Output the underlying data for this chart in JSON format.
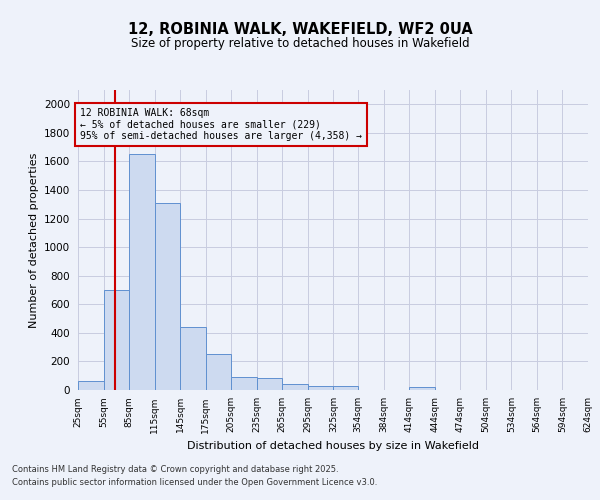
{
  "title": "12, ROBINIA WALK, WAKEFIELD, WF2 0UA",
  "subtitle": "Size of property relative to detached houses in Wakefield",
  "xlabel": "Distribution of detached houses by size in Wakefield",
  "ylabel": "Number of detached properties",
  "footnote1": "Contains HM Land Registry data © Crown copyright and database right 2025.",
  "footnote2": "Contains public sector information licensed under the Open Government Licence v3.0.",
  "bins": [
    25,
    55,
    85,
    115,
    145,
    175,
    205,
    235,
    265,
    295,
    325,
    354,
    384,
    414,
    444,
    474,
    504,
    534,
    564,
    594,
    624
  ],
  "bar_heights": [
    65,
    700,
    1650,
    1310,
    440,
    255,
    90,
    85,
    45,
    30,
    25,
    0,
    0,
    20,
    0,
    0,
    0,
    0,
    0,
    0
  ],
  "bar_color": "#cddaf0",
  "bar_edge_color": "#6090d0",
  "grid_color": "#c8cce0",
  "ylim": [
    0,
    2100
  ],
  "yticks": [
    0,
    200,
    400,
    600,
    800,
    1000,
    1200,
    1400,
    1600,
    1800,
    2000
  ],
  "property_size": 68,
  "red_line_color": "#cc0000",
  "annotation_line1": "12 ROBINIA WALK: 68sqm",
  "annotation_line2": "← 5% of detached houses are smaller (229)",
  "annotation_line3": "95% of semi-detached houses are larger (4,358) →",
  "annotation_box_color": "#cc0000",
  "background_color": "#eef2fa"
}
